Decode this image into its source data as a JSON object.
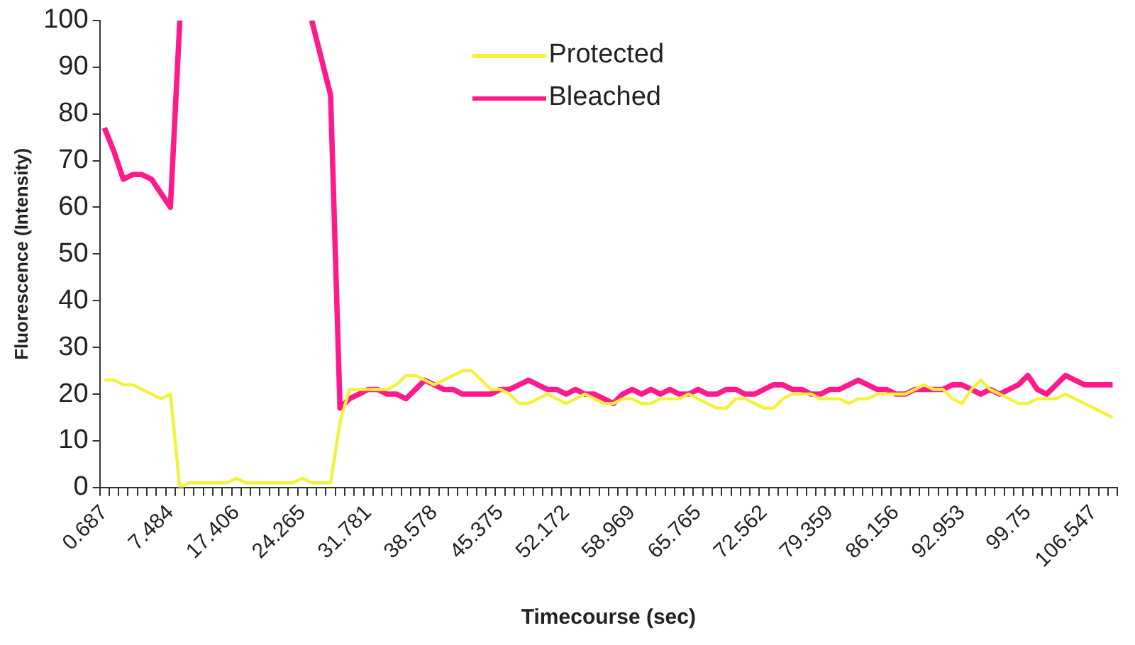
{
  "chart_data": {
    "type": "line",
    "xlabel": "Timecourse (sec)",
    "ylabel": "Fluorescence (Intensity)",
    "categories": [
      "0.687",
      null,
      null,
      null,
      null,
      null,
      null,
      "7.484",
      null,
      null,
      null,
      null,
      null,
      null,
      "17.406",
      null,
      null,
      null,
      null,
      null,
      null,
      "24.265",
      null,
      null,
      null,
      null,
      null,
      null,
      "31.781",
      null,
      null,
      null,
      null,
      null,
      null,
      "38.578",
      null,
      null,
      null,
      null,
      null,
      null,
      "45.375",
      null,
      null,
      null,
      null,
      null,
      null,
      "52.172",
      null,
      null,
      null,
      null,
      null,
      null,
      "58.969",
      null,
      null,
      null,
      null,
      null,
      null,
      "65.765",
      null,
      null,
      null,
      null,
      null,
      null,
      "72.562",
      null,
      null,
      null,
      null,
      null,
      null,
      "79.359",
      null,
      null,
      null,
      null,
      null,
      null,
      "86.156",
      null,
      null,
      null,
      null,
      null,
      null,
      "92.953",
      null,
      null,
      null,
      null,
      null,
      null,
      "99.75",
      null,
      null,
      null,
      null,
      null,
      null,
      "106.547",
      null,
      null
    ],
    "series": [
      {
        "name": "Protected",
        "color": "#f2f23a",
        "values": [
          23,
          23,
          22,
          22,
          21,
          20,
          19,
          20,
          0,
          1,
          1,
          1,
          1,
          1,
          2,
          1,
          1,
          1,
          1,
          1,
          1,
          2,
          1,
          1,
          1,
          14,
          21,
          21,
          21,
          21,
          21,
          22,
          24,
          24,
          23,
          22,
          23,
          24,
          25,
          25,
          23,
          21,
          21,
          20,
          18,
          18,
          19,
          20,
          19,
          18,
          19,
          20,
          19,
          18,
          18,
          19,
          19,
          18,
          18,
          19,
          19,
          19,
          20,
          19,
          18,
          17,
          17,
          19,
          19,
          18,
          17,
          17,
          19,
          20,
          20,
          20,
          19,
          19,
          19,
          18,
          19,
          19,
          20,
          20,
          20,
          20,
          21,
          22,
          21,
          21,
          19,
          18,
          21,
          23,
          21,
          20,
          19,
          18,
          18,
          19,
          19,
          19,
          20,
          19,
          18,
          17,
          16,
          15
        ]
      },
      {
        "name": "Bleached",
        "color": "#ff1a8c",
        "values": [
          77,
          72,
          66,
          67,
          67,
          66,
          63,
          60,
          100,
          null,
          null,
          null,
          null,
          null,
          null,
          null,
          null,
          null,
          null,
          null,
          null,
          null,
          100,
          92,
          84,
          17,
          19,
          20,
          21,
          21,
          20,
          20,
          19,
          21,
          23,
          22,
          21,
          21,
          20,
          20,
          20,
          20,
          21,
          21,
          22,
          23,
          22,
          21,
          21,
          20,
          21,
          20,
          20,
          19,
          18,
          20,
          21,
          20,
          21,
          20,
          21,
          20,
          20,
          21,
          20,
          20,
          21,
          21,
          20,
          20,
          21,
          22,
          22,
          21,
          21,
          20,
          20,
          21,
          21,
          22,
          23,
          22,
          21,
          21,
          20,
          20,
          21,
          21,
          21,
          21,
          22,
          22,
          21,
          20,
          21,
          20,
          21,
          22,
          24,
          21,
          20,
          22,
          24,
          23,
          22,
          22,
          22,
          22
        ]
      }
    ],
    "ylim": [
      0,
      100
    ],
    "yticks": [
      0,
      10,
      20,
      30,
      40,
      50,
      60,
      70,
      80,
      90,
      100
    ],
    "grid": false,
    "legend": "top",
    "marker": "none",
    "line_style": "solid"
  }
}
